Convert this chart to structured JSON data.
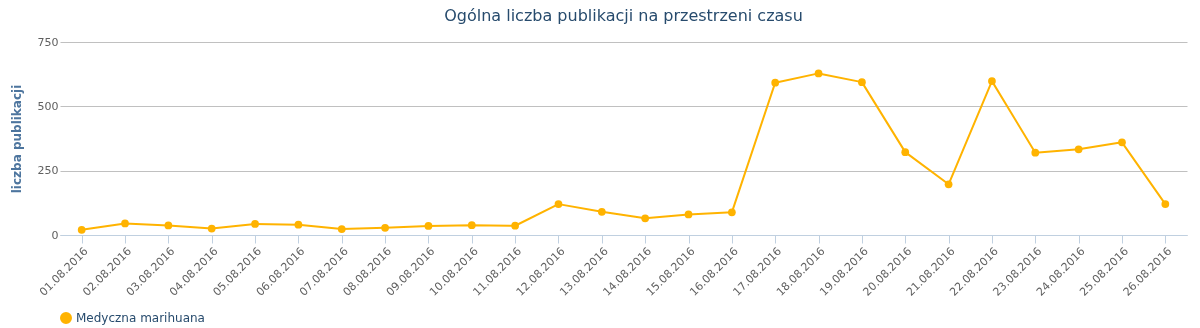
{
  "chart_data": {
    "type": "line",
    "title": "Ogólna liczba publikacji na przestrzeni czasu",
    "ylabel": "liczba publikacji",
    "categories": [
      "01.08.2016",
      "02.08.2016",
      "03.08.2016",
      "04.08.2016",
      "05.08.2016",
      "06.08.2016",
      "07.08.2016",
      "08.08.2016",
      "09.08.2016",
      "10.08.2016",
      "11.08.2016",
      "12.08.2016",
      "13.08.2016",
      "14.08.2016",
      "15.08.2016",
      "16.08.2016",
      "17.08.2016",
      "18.08.2016",
      "19.08.2016",
      "20.08.2016",
      "21.08.2016",
      "22.08.2016",
      "23.08.2016",
      "24.08.2016",
      "25.08.2016",
      "26.08.2016"
    ],
    "series": [
      {
        "name": "Medyczna marihuana",
        "color": "#ffb300",
        "values": [
          20,
          45,
          37,
          25,
          43,
          40,
          23,
          28,
          35,
          38,
          36,
          120,
          90,
          65,
          80,
          88,
          592,
          628,
          594,
          322,
          197,
          598,
          320,
          333,
          360,
          120
        ]
      }
    ],
    "ylim": [
      0,
      750
    ],
    "yticks": [
      0,
      250,
      500,
      750
    ],
    "grid": "y",
    "legend": "bottom",
    "marker": "circle"
  }
}
